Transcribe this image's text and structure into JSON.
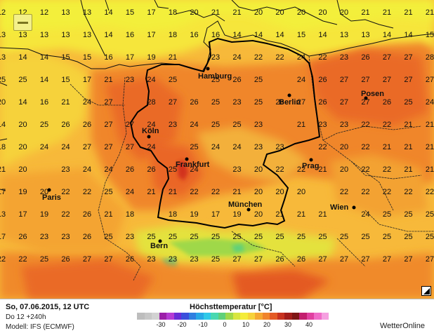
{
  "map": {
    "cities": [
      {
        "id": "hamburg",
        "label": "Hamburg"
      },
      {
        "id": "berlin",
        "label": "Berlin"
      },
      {
        "id": "posen",
        "label": "Posen"
      },
      {
        "id": "koeln",
        "label": "Köln"
      },
      {
        "id": "frankfurt",
        "label": "Frankfurt"
      },
      {
        "id": "prag",
        "label": "Prag"
      },
      {
        "id": "paris",
        "label": "Paris"
      },
      {
        "id": "muenchen",
        "label": "München"
      },
      {
        "id": "wien",
        "label": "Wien"
      },
      {
        "id": "bern",
        "label": "Bern"
      }
    ],
    "grid_values": [
      [
        12,
        12,
        12,
        13,
        13,
        14,
        15,
        17,
        18,
        20,
        21,
        21,
        20,
        20,
        20,
        20,
        20,
        21,
        21,
        21,
        21
      ],
      [
        13,
        13,
        13,
        13,
        13,
        14,
        16,
        17,
        18,
        16,
        16,
        14,
        14,
        14,
        15,
        14,
        13,
        13,
        14,
        14,
        15
      ],
      [
        13,
        14,
        14,
        15,
        15,
        16,
        17,
        19,
        21,
        24,
        23,
        24,
        22,
        22,
        24,
        22,
        23,
        26,
        27,
        27,
        28
      ],
      [
        25,
        25,
        14,
        15,
        17,
        21,
        23,
        24,
        25,
        25,
        25,
        26,
        25,
        25,
        24,
        26,
        27,
        27,
        27,
        27,
        27
      ],
      [
        20,
        14,
        16,
        21,
        24,
        27,
        27,
        28,
        27,
        26,
        25,
        23,
        25,
        26,
        27,
        26,
        27,
        27,
        26,
        25,
        24
      ],
      [
        14,
        20,
        25,
        26,
        26,
        27,
        27,
        24,
        23,
        24,
        25,
        25,
        23,
        22,
        21,
        23,
        23,
        22,
        22,
        21,
        21
      ],
      [
        18,
        20,
        24,
        24,
        27,
        27,
        27,
        24,
        24,
        25,
        24,
        24,
        23,
        23,
        23,
        22,
        20,
        22,
        21,
        21,
        21
      ],
      [
        21,
        20,
        24,
        23,
        24,
        24,
        26,
        26,
        25,
        24,
        23,
        23,
        20,
        22,
        22,
        21,
        20,
        22,
        22,
        21,
        21
      ],
      [
        17,
        19,
        20,
        22,
        22,
        25,
        24,
        21,
        21,
        22,
        22,
        21,
        20,
        20,
        20,
        21,
        22,
        22,
        22,
        22,
        22
      ],
      [
        13,
        17,
        19,
        22,
        26,
        21,
        18,
        18,
        18,
        19,
        17,
        19,
        20,
        21,
        21,
        21,
        23,
        24,
        25,
        25,
        25
      ],
      [
        17,
        26,
        23,
        23,
        26,
        25,
        23,
        25,
        25,
        25,
        25,
        25,
        25,
        25,
        25,
        25,
        25,
        25,
        25,
        25,
        25
      ],
      [
        22,
        22,
        25,
        26,
        27,
        27,
        26,
        23,
        23,
        23,
        25,
        27,
        27,
        26,
        26,
        27,
        27,
        27,
        27,
        27,
        27
      ]
    ]
  },
  "footer": {
    "date": "So, 07.06.2015, 12 UTC",
    "run": "Do 12 +240h",
    "model": "Modell: IFS (ECMWF)",
    "title": "Höchsttemperatur [°C]",
    "brand": "WetterOnline",
    "legend_colors": [
      "#bdbdbd",
      "#c7c7c7",
      "#d2d2d2",
      "#9b1fa8",
      "#b53bd4",
      "#6a2dd6",
      "#3b4fdc",
      "#2f7fe0",
      "#27a8e6",
      "#2fc9e8",
      "#48d8b0",
      "#5fd07a",
      "#9fd84a",
      "#d8e640",
      "#f4ec3a",
      "#f7d23a",
      "#f5a832",
      "#f0842c",
      "#e45a24",
      "#c8321f",
      "#a21d1a",
      "#7e1515",
      "#c21f6e",
      "#e040a0",
      "#f06cc8",
      "#f5a0e0"
    ],
    "ticks": [
      "-30",
      "-20",
      "-10",
      "0",
      "10",
      "20",
      "30",
      "40"
    ]
  }
}
